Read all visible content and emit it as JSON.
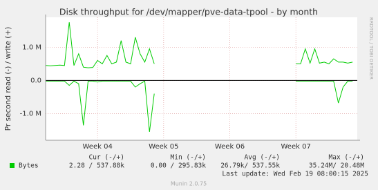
{
  "chart_data": {
    "type": "line",
    "title": "Disk throughput for /dev/mapper/pve-data-tpool - by month",
    "y_label": "Pr second read (-) / write (+)",
    "side_label": "RRDTOOL / TOBI OETIKER",
    "xlim": [
      0,
      66
    ],
    "xticks": [
      {
        "value": 11,
        "label": "Week 04"
      },
      {
        "value": 25,
        "label": "Week 05"
      },
      {
        "value": 39,
        "label": "Week 06"
      },
      {
        "value": 53,
        "label": "Week 07"
      }
    ],
    "ylim": [
      -1800000,
      1900000
    ],
    "yticks": [
      {
        "value": 1000000,
        "label": "1.0 M"
      },
      {
        "value": 0,
        "label": "0.0"
      },
      {
        "value": -1000000,
        "label": "-1.0 M"
      }
    ],
    "grid": true,
    "series": [
      {
        "name": "Bytes",
        "color": "#00cc00",
        "values": [
          450000,
          440000,
          450000,
          460000,
          450000,
          1750000,
          450000,
          800000,
          400000,
          380000,
          390000,
          600000,
          500000,
          750000,
          500000,
          550000,
          1200000,
          550000,
          500000,
          1300000,
          800000,
          550000,
          950000,
          500000,
          null,
          null,
          null,
          null,
          null,
          null,
          null,
          null,
          null,
          null,
          null,
          null,
          null,
          null,
          null,
          null,
          null,
          null,
          null,
          null,
          null,
          null,
          null,
          null,
          null,
          null,
          null,
          null,
          null,
          500000,
          500000,
          950000,
          520000,
          950000,
          520000,
          550000,
          500000,
          650000,
          550000,
          550000,
          520000,
          550000
        ]
      },
      {
        "color": "#00cc00",
        "values": [
          -20000,
          -20000,
          -20000,
          -20000,
          -20000,
          -150000,
          -20000,
          -100000,
          -1350000,
          -20000,
          -20000,
          -50000,
          -20000,
          -20000,
          -20000,
          -20000,
          -20000,
          -20000,
          -20000,
          -200000,
          -100000,
          -20000,
          -1550000,
          -400000,
          null,
          null,
          null,
          null,
          null,
          null,
          null,
          null,
          null,
          null,
          null,
          null,
          null,
          null,
          null,
          null,
          null,
          null,
          null,
          null,
          null,
          null,
          null,
          null,
          null,
          null,
          null,
          null,
          null,
          -20000,
          -20000,
          -20000,
          -20000,
          -20000,
          -20000,
          -20000,
          -20000,
          -20000,
          -680000,
          -200000,
          -20000,
          -20000
        ]
      }
    ],
    "stats_headers": [
      "Cur (-/+)",
      "Min (-/+)",
      "Avg (-/+)",
      "Max (-/+)"
    ],
    "stats": [
      "2.28 / 537.88k",
      "0.00 / 295.83k",
      "26.79k/ 537.55k",
      "35.24M/  20.48M"
    ],
    "last_update": "Last update: Wed Feb 19 08:00:15 2025",
    "footer": "Munin 2.0.75"
  }
}
